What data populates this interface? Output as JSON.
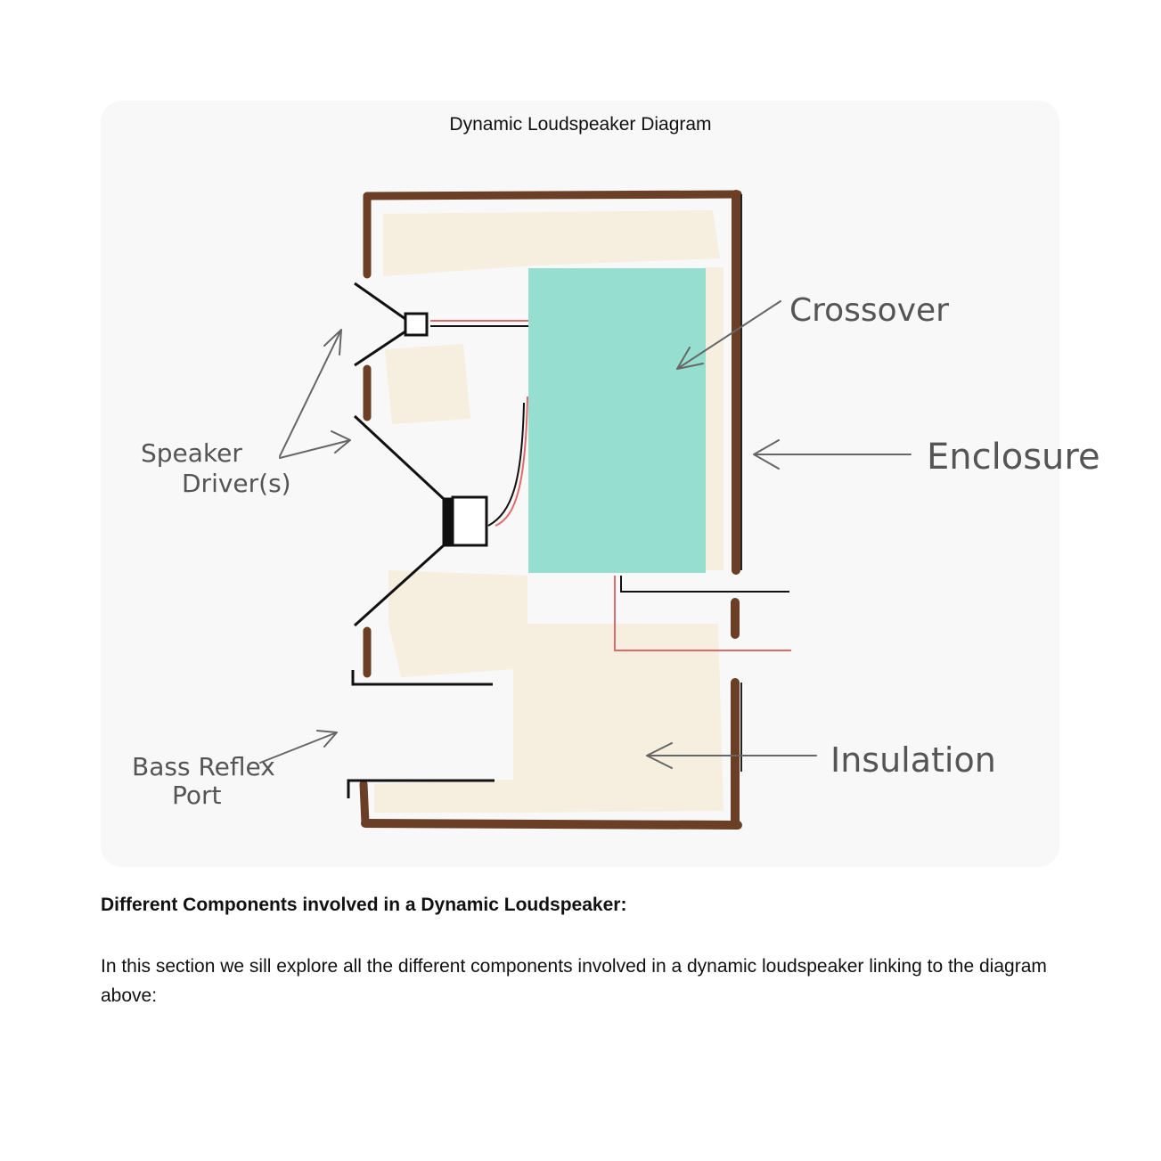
{
  "figure": {
    "caption": "Dynamic Loudspeaker Diagram",
    "labels": {
      "crossover": "Crossover",
      "enclosure": "Enclosure",
      "insulation": "Insulation",
      "speaker_driver_line1": "Speaker",
      "speaker_driver_line2": "Driver(s)",
      "bass_reflex_line1": "Bass Reflex",
      "bass_reflex_line2": "Port"
    },
    "colors": {
      "enclosure": "#6b3f26",
      "crossover": "#96dfd0",
      "insulation": "#f6efdf",
      "wire_red": "#e06a6a",
      "line": "#111111",
      "arrow": "#666666",
      "card_background": "#f8f8f8"
    }
  },
  "section": {
    "heading": "Different Components involved in a Dynamic Loudspeaker:",
    "body": "In this section we sill explore all the different components involved in a dynamic loudspeaker linking to the diagram above:"
  }
}
